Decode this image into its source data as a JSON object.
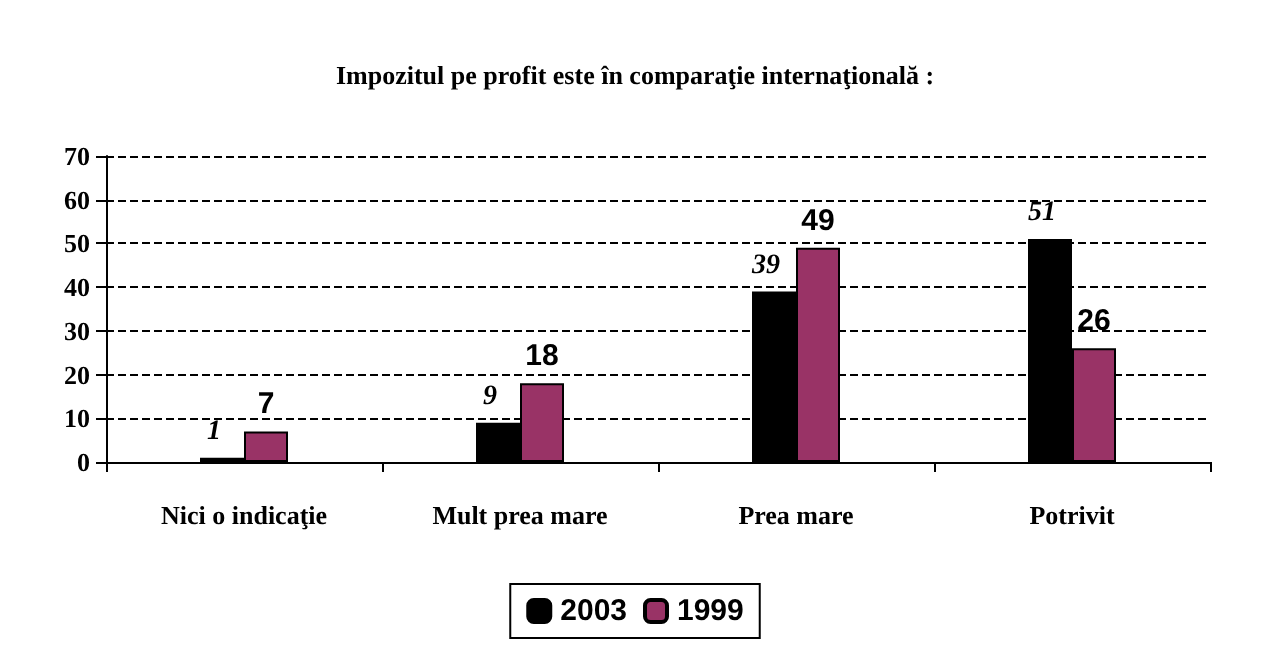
{
  "chart_data": {
    "type": "bar",
    "title": "Impozitul pe profit este în comparaţie internaţională :",
    "categories": [
      "Nici o indicaţie",
      "Mult prea mare",
      "Prea mare",
      "Potrivit"
    ],
    "series": [
      {
        "name": "2003",
        "color": "#000000",
        "values": [
          1,
          9,
          39,
          51
        ]
      },
      {
        "name": "1999",
        "color": "#993366",
        "values": [
          7,
          18,
          49,
          26
        ]
      }
    ],
    "ylim": [
      0,
      70
    ],
    "yticks": [
      0,
      10,
      20,
      30,
      40,
      50,
      60,
      70
    ],
    "grid": "y",
    "legend": "bottom",
    "data_labels": true
  }
}
